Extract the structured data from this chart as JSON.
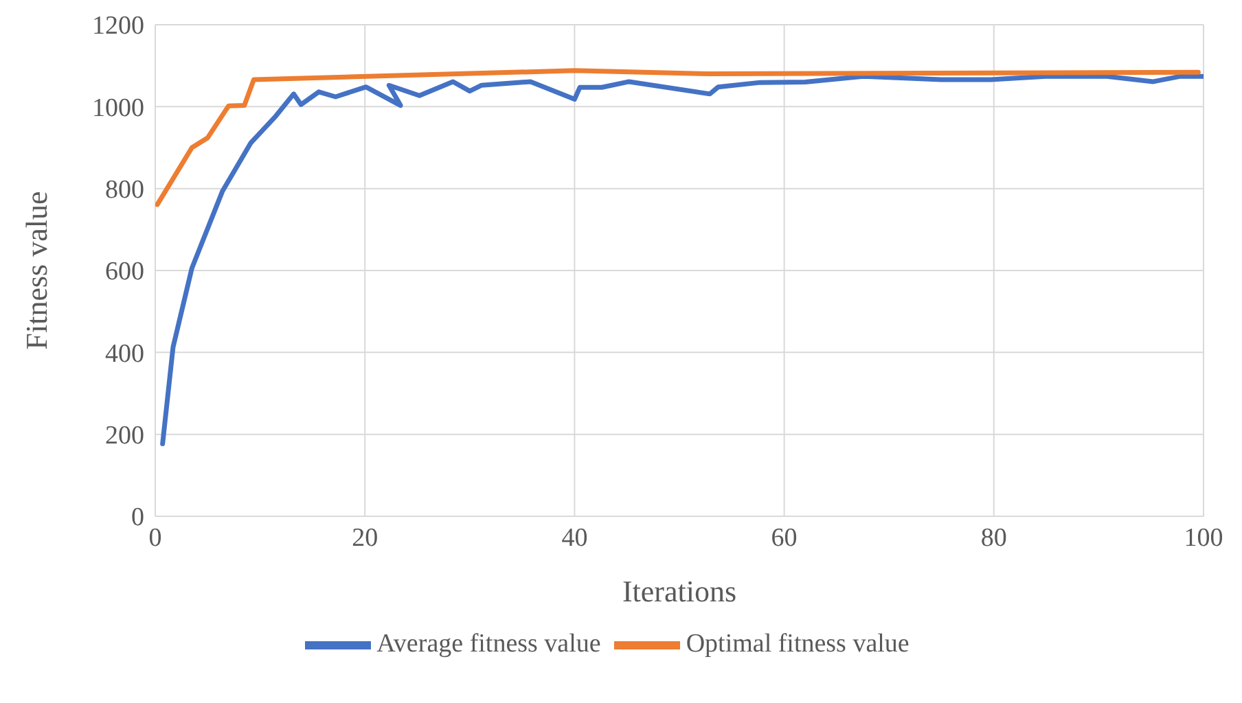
{
  "chart_data": {
    "type": "line",
    "xlabel": "Iterations",
    "ylabel": "Fitness value",
    "xlim": [
      0,
      100
    ],
    "xticks": [
      0,
      20,
      40,
      60,
      80,
      100
    ],
    "ylim": [
      0,
      1200
    ],
    "yticks": [
      0,
      200,
      400,
      600,
      800,
      1000,
      1200
    ],
    "grid": true,
    "legend": "bottom",
    "marker": "none",
    "line_style": "solid",
    "series": [
      {
        "name": "Average fitness value",
        "color": "#4472c4",
        "x": [
          0.7,
          1.7,
          3.5,
          6.4,
          9.1,
          11.5,
          13.2,
          13.9,
          15.6,
          17.2,
          20.1,
          23.4,
          22.3,
          25.2,
          28.4,
          30.0,
          31.1,
          35.8,
          40.0,
          40.5,
          42.6,
          45.2,
          52.9,
          53.7,
          57.7,
          62,
          67.5,
          75,
          79.7,
          84.9,
          90.8,
          95.2,
          97.8,
          99.9
        ],
        "values": [
          177,
          413,
          606,
          793,
          911,
          977,
          1031,
          1005,
          1036,
          1024,
          1048,
          1003,
          1052,
          1027,
          1061,
          1038,
          1052,
          1061,
          1018,
          1047,
          1047,
          1061,
          1031,
          1048,
          1059,
          1060,
          1074,
          1066,
          1066,
          1074,
          1074,
          1061,
          1074,
          1074
        ]
      },
      {
        "name": "Optimal fitness value",
        "color": "#ed7d31",
        "x": [
          0.2,
          3.5,
          5.0,
          7.0,
          8.5,
          9.4,
          21.9,
          40.0,
          52.9,
          99.5
        ],
        "values": [
          761,
          900,
          924,
          1002,
          1003,
          1066,
          1075,
          1088,
          1080,
          1084
        ]
      }
    ]
  }
}
